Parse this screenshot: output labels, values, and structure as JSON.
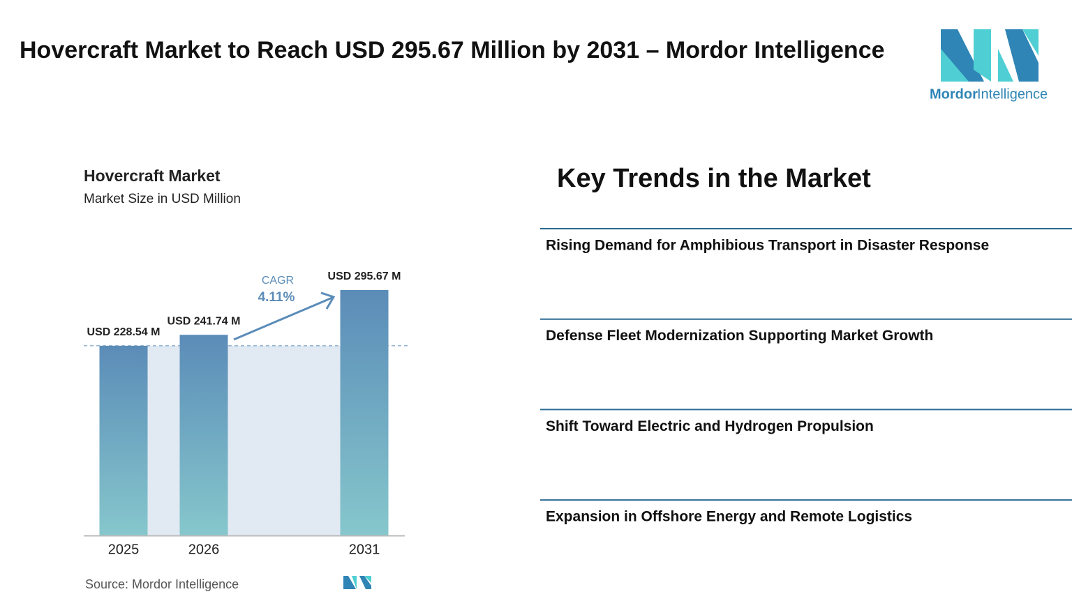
{
  "header": {
    "title": "Hovercraft Market to Reach USD 295.67 Million by 2031 – Mordor Intelligence"
  },
  "logo": {
    "text": [
      "Mordor",
      "Intelligence"
    ]
  },
  "chart_data": {
    "type": "bar",
    "title": "Hovercraft Market",
    "subtitle": "Market Size in USD Million",
    "categories": [
      "2025",
      "2026",
      "2031"
    ],
    "values": [
      228.54,
      241.74,
      295.67
    ],
    "value_labels": [
      "USD 228.54 M",
      "USD 241.74 M",
      "USD 295.67 M"
    ],
    "color": [
      "#5b8cb8",
      "#86c7cc"
    ],
    "annotation": {
      "label": "CAGR",
      "value": "4.11%"
    },
    "source": "Source: Mordor Intelligence"
  },
  "trends": {
    "title": "Key Trends in the Market",
    "items": [
      "Rising Demand for Amphibious Transport in Disaster Response",
      "Defense Fleet Modernization Supporting Market Growth",
      "Shift Toward Electric and Hydrogen Propulsion",
      "Expansion in Offshore Energy and Remote Logistics"
    ]
  }
}
